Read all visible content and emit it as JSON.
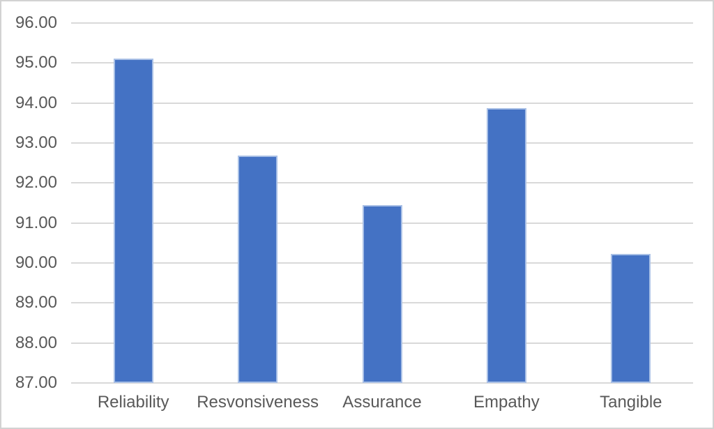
{
  "chart_data": {
    "type": "bar",
    "title": "",
    "xlabel": "",
    "ylabel": "",
    "categories": [
      "Reliability",
      "Resvonsiveness",
      "Assurance",
      "Empathy",
      "Tangible"
    ],
    "values": [
      95.11,
      92.69,
      91.45,
      93.87,
      90.23
    ],
    "ylim": [
      87,
      96
    ],
    "y_ticks": [
      96,
      95,
      94,
      93,
      92,
      91,
      90,
      89,
      88,
      87
    ],
    "y_tick_labels": [
      "96.00",
      "95.00",
      "94.00",
      "93.00",
      "92.00",
      "91.00",
      "90.00",
      "89.00",
      "88.00",
      "87.00"
    ],
    "grid": true,
    "legend": "none",
    "colors": {
      "bar_fill": "#4472C4",
      "bar_border": "#A9C0E6",
      "gridline": "#D9D9D9",
      "axis_text": "#595959",
      "frame_border": "#D2D2D2",
      "background": "#FFFFFF"
    }
  }
}
